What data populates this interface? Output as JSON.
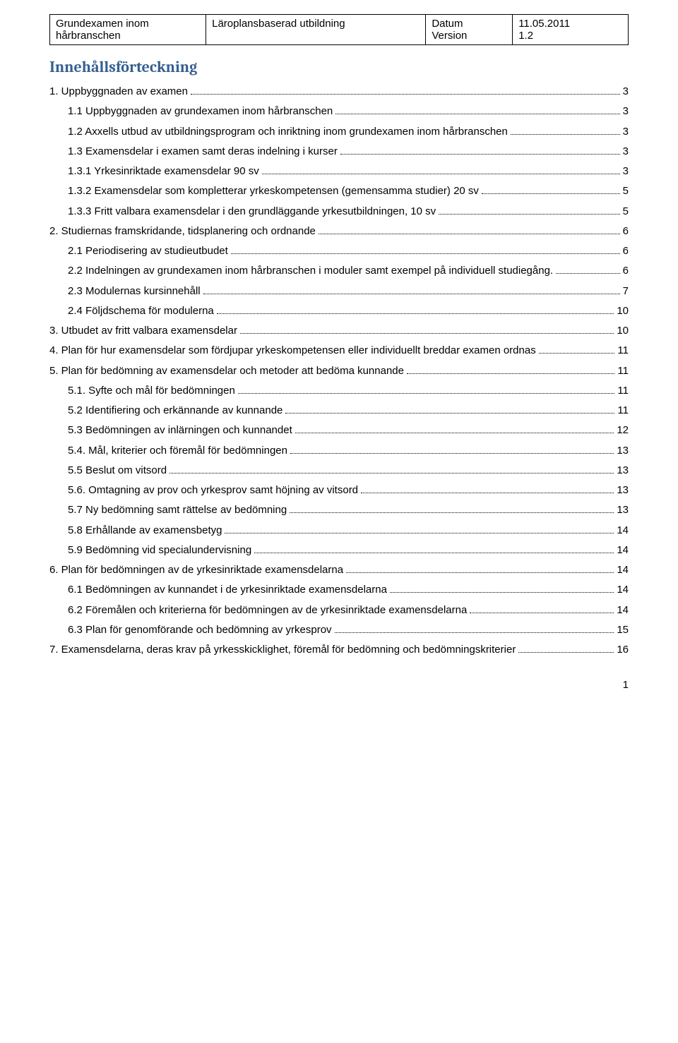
{
  "header": {
    "col1_line1": "Grundexamen inom",
    "col1_line2": "hårbranschen",
    "col2": "Läroplansbaserad utbildning",
    "col3_line1": "Datum",
    "col3_line2": "Version",
    "col4_line1": "11.05.2011",
    "col4_line2": "1.2"
  },
  "toc_title": "Innehållsförteckning",
  "toc": [
    {
      "indent": 0,
      "text": "1.  Uppbyggnaden av examen",
      "page": "3"
    },
    {
      "indent": 1,
      "text": "1.1 Uppbyggnaden av grundexamen inom hårbranschen",
      "page": "3"
    },
    {
      "indent": 1,
      "text": "1.2 Axxells utbud av utbildningsprogram och inriktning inom grundexamen inom hårbranschen",
      "page": "3",
      "wrap": true
    },
    {
      "indent": 1,
      "text": "1.3 Examensdelar i examen samt deras indelning i kurser",
      "page": "3"
    },
    {
      "indent": 1,
      "text": "1.3.1 Yrkesinriktade examensdelar 90 sv",
      "page": "3"
    },
    {
      "indent": 1,
      "text": "1.3.2 Examensdelar som kompletterar yrkeskompetensen (gemensamma studier) 20 sv",
      "page": "5",
      "wrap": true
    },
    {
      "indent": 1,
      "text": "1.3.3 Fritt valbara examensdelar i den grundläggande yrkesutbildningen, 10 sv",
      "page": "5"
    },
    {
      "indent": 0,
      "text": "2.  Studiernas framskridande, tidsplanering och ordnande",
      "page": "6"
    },
    {
      "indent": 1,
      "text": "2.1 Periodisering av studieutbudet",
      "page": "6"
    },
    {
      "indent": 1,
      "text": "2.2 Indelningen av grundexamen inom hårbranschen i moduler samt exempel på individuell studiegång.",
      "page": "6",
      "wrap": true
    },
    {
      "indent": 1,
      "text": "2.3 Modulernas kursinnehåll",
      "page": "7"
    },
    {
      "indent": 1,
      "text": "2.4 Följdschema för modulerna",
      "page": "10"
    },
    {
      "indent": 0,
      "text": "3.  Utbudet av fritt valbara examensdelar",
      "page": "10"
    },
    {
      "indent": 0,
      "text": "4.  Plan för hur examensdelar som fördjupar yrkeskompetensen eller individuellt breddar examen ordnas",
      "page": "11",
      "wrap": true
    },
    {
      "indent": 0,
      "text": "5.  Plan för bedömning av examensdelar och metoder att bedöma kunnande",
      "page": "11"
    },
    {
      "indent": 1,
      "text": "5.1. Syfte och mål för bedömningen",
      "page": "11"
    },
    {
      "indent": 1,
      "text": "5.2 Identifiering och erkännande av kunnande",
      "page": "11"
    },
    {
      "indent": 1,
      "text": "5.3 Bedömningen av inlärningen och kunnandet",
      "page": "12"
    },
    {
      "indent": 1,
      "text": "5.4. Mål, kriterier och föremål för bedömningen",
      "page": "13"
    },
    {
      "indent": 1,
      "text": "5.5 Beslut om vitsord",
      "page": "13"
    },
    {
      "indent": 1,
      "text": "5.6. Omtagning av prov och yrkesprov samt höjning av vitsord",
      "page": "13"
    },
    {
      "indent": 1,
      "text": "5.7 Ny bedömning samt rättelse av bedömning",
      "page": "13"
    },
    {
      "indent": 1,
      "text": "5.8 Erhållande av examensbetyg",
      "page": "14"
    },
    {
      "indent": 1,
      "text": "5.9 Bedömning vid specialundervisning",
      "page": "14"
    },
    {
      "indent": 0,
      "text": "6.  Plan för bedömningen av de yrkesinriktade examensdelarna",
      "page": "14"
    },
    {
      "indent": 1,
      "text": "6.1 Bedömningen av kunnandet i de yrkesinriktade examensdelarna",
      "page": "14"
    },
    {
      "indent": 1,
      "text": "6.2 Föremålen och kriterierna för bedömningen av de yrkesinriktade examensdelarna",
      "page": "14"
    },
    {
      "indent": 1,
      "text": "6.3 Plan för genomförande och bedömning av yrkesprov",
      "page": "15"
    },
    {
      "indent": 0,
      "text": "7.  Examensdelarna, deras krav på yrkesskicklighet, föremål för bedömning och bedömningskriterier",
      "page": "16",
      "wrap": true
    }
  ],
  "footer_page": "1"
}
